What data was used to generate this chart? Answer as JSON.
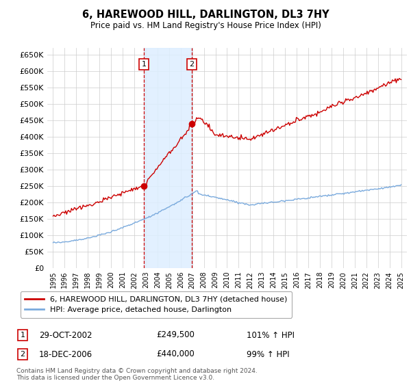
{
  "title": "6, HAREWOOD HILL, DARLINGTON, DL3 7HY",
  "subtitle": "Price paid vs. HM Land Registry's House Price Index (HPI)",
  "legend_line1": "6, HAREWOOD HILL, DARLINGTON, DL3 7HY (detached house)",
  "legend_line2": "HPI: Average price, detached house, Darlington",
  "point1_date": "29-OCT-2002",
  "point1_price": "£249,500",
  "point1_hpi": "101% ↑ HPI",
  "point2_date": "18-DEC-2006",
  "point2_price": "£440,000",
  "point2_hpi": "99% ↑ HPI",
  "footer": "Contains HM Land Registry data © Crown copyright and database right 2024.\nThis data is licensed under the Open Government Licence v3.0.",
  "red_color": "#cc0000",
  "blue_color": "#7aaadd",
  "shade_color": "#ddeeff",
  "background_color": "#ffffff",
  "grid_color": "#cccccc",
  "ylim": [
    0,
    670000
  ],
  "yticks": [
    0,
    50000,
    100000,
    150000,
    200000,
    250000,
    300000,
    350000,
    400000,
    450000,
    500000,
    550000,
    600000,
    650000
  ],
  "point1_x": 2002.83,
  "point1_y": 249500,
  "point2_x": 2006.96,
  "point2_y": 440000,
  "shade_x1": 2002.83,
  "shade_x2": 2006.96,
  "xlim_left": 1994.5,
  "xlim_right": 2025.5
}
